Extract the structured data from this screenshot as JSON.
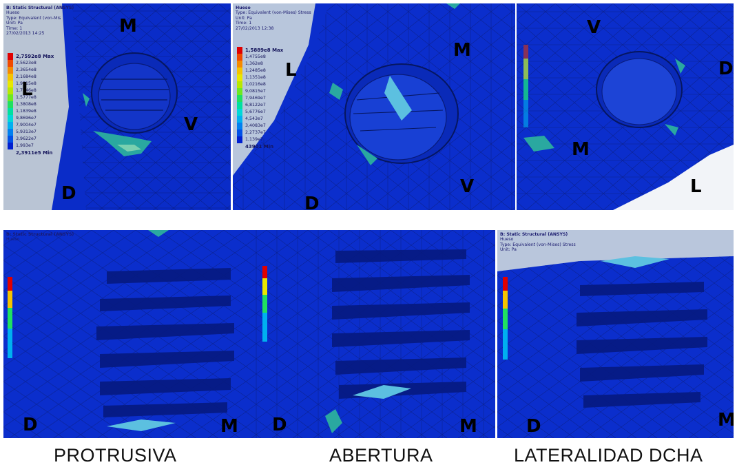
{
  "panels": {
    "top_left": {
      "header": [
        "B: Static Structural (ANSYS)",
        "Hueso",
        "Type: Equivalent (von-Mis",
        "Unit: Pa",
        "Time: 1",
        "27/02/2013 14:25"
      ],
      "legend": [
        "2,7592e8 Max",
        "2,5623e8",
        "2,3654e8",
        "2,1684e8",
        "1,9715e8",
        "1,7746e8",
        "1,5777e8",
        "1,3808e8",
        "1,1839e8",
        "9,8696e7",
        "7,9004e7",
        "5,9313e7",
        "3,9622e7",
        "1,993e7",
        "2,3911e5 Min"
      ],
      "markers": {
        "m": "M",
        "l": "L",
        "v": "V",
        "d": "D"
      }
    },
    "top_middle": {
      "header": [
        "Hueso",
        "Type: Equivalent (von-Mises) Stress",
        "Unit: Pa",
        "Time: 1",
        "27/02/2013 12:38"
      ],
      "legend": [
        "1,5889e8 Max",
        "1,4755e8",
        "1,362e8",
        "1,2485e8",
        "1,1351e8",
        "1,0216e8",
        "9,0815e7",
        "7,9469e7",
        "6,8122e7",
        "5,6776e7",
        "4,543e7",
        "3,4083e7",
        "2,2737e7",
        "1,139e7",
        "43901 Min"
      ],
      "markers": {
        "m": "M",
        "l": "L",
        "v": "V",
        "d": "D"
      }
    },
    "top_right": {
      "markers": {
        "v": "V",
        "d": "D",
        "m": "M",
        "l": "L"
      }
    },
    "bottom_left": {
      "header": [
        "B: Static Structural (ANSYS)",
        "Hueso"
      ],
      "markers": {
        "d": "D",
        "m": "M"
      }
    },
    "bottom_middle": {
      "markers": {
        "d": "D",
        "m": "M"
      }
    },
    "bottom_right": {
      "header": [
        "B: Static Structural (ANSYS)",
        "Hueso",
        "Type: Equivalent (von-Mises) Stress",
        "Unit: Pa"
      ],
      "markers": {
        "d": "D",
        "m": "M"
      }
    }
  },
  "captions": [
    "PROTRUSIVA",
    "ABERTURA",
    "LATERALIDAD DCHA"
  ],
  "colors": {
    "background_blue": "#0c2fd0",
    "legend_scale": [
      "#e00000",
      "#f04a00",
      "#f58a00",
      "#f5c400",
      "#e8e800",
      "#b8e800",
      "#6ee820",
      "#20e060",
      "#00e0a0",
      "#00d8d8",
      "#00b0f0",
      "#0080f0",
      "#0050e8",
      "#0020d0"
    ]
  }
}
